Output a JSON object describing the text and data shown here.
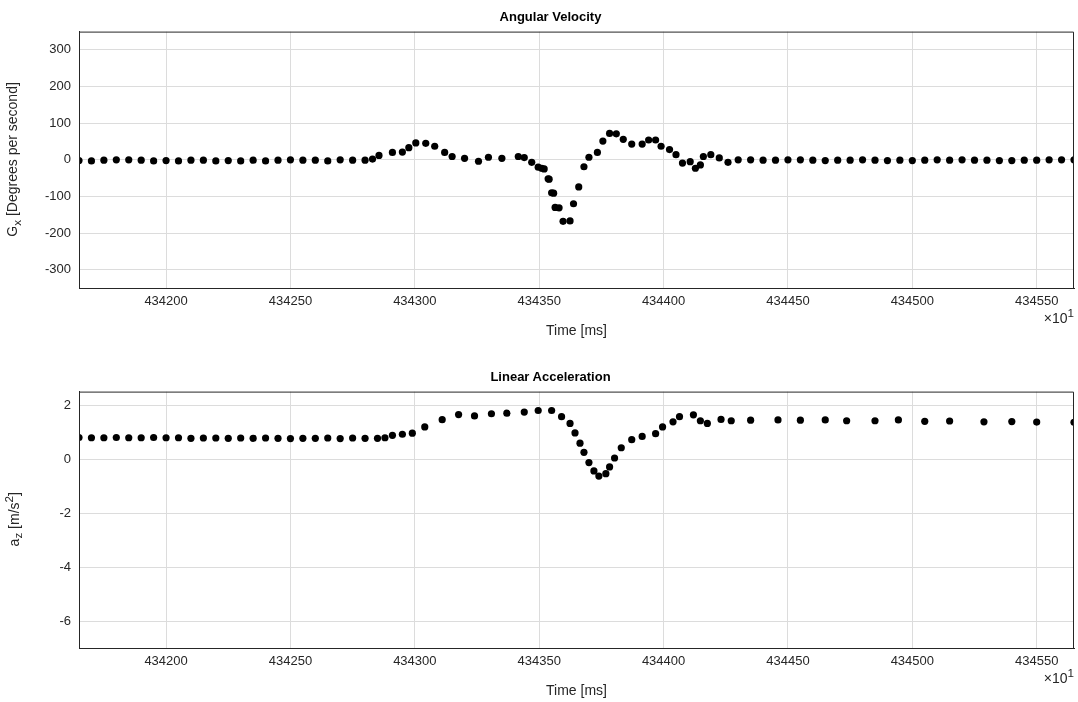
{
  "chart_data": [
    {
      "type": "scatter",
      "title": "Angular Velocity",
      "xlabel": "Time [ms]",
      "ylabel": "G$_{x}$ [Degrees per second]",
      "annotations": [
        "×10$^{1}$"
      ],
      "color": "#000000",
      "marker": "circle",
      "grid": true,
      "xlim": [
        434165,
        434565
      ],
      "xticks": [
        434200,
        434250,
        434300,
        434350,
        434400,
        434450,
        434500,
        434550
      ],
      "ylim": [
        -350,
        350
      ],
      "yticks": [
        -300,
        -200,
        -100,
        0,
        100,
        200,
        300
      ],
      "x": [
        434165,
        434170,
        434175,
        434180,
        434185,
        434190,
        434195,
        434200,
        434205,
        434210,
        434215,
        434220,
        434225,
        434230,
        434235,
        434240,
        434245,
        434250,
        434255,
        434260,
        434265,
        434270,
        434275,
        434280,
        434283,
        434285.6,
        434291,
        434295,
        434297.6,
        434300.4,
        434304.4,
        434308,
        434312,
        434315,
        434320,
        434325.6,
        434329.6,
        434335,
        434341.6,
        434344,
        434347,
        434349.6,
        434351,
        434352,
        434353.6,
        434354,
        434355,
        434355.8,
        434356.4,
        434358,
        434359.6,
        434362.4,
        434363.8,
        434365.9,
        434368,
        434370,
        434373.4,
        434375.6,
        434378.3,
        434381,
        434383.8,
        434387.2,
        434391.4,
        434394,
        434396.8,
        434399,
        434402.4,
        434405,
        434407.6,
        434410.7,
        434412.8,
        434414.8,
        434416,
        434419,
        434422.4,
        434425.9,
        434430,
        434435,
        434440,
        434445,
        434450,
        434455,
        434460,
        434465,
        434470,
        434475,
        434480,
        434485,
        434490,
        434495,
        434500,
        434505,
        434510,
        434515,
        434520,
        434525,
        434530,
        434535,
        434540,
        434545,
        434550,
        434555,
        434560,
        434565
      ],
      "values": [
        -2,
        -3,
        -1,
        0,
        0,
        -1,
        -3,
        -2,
        -3,
        -1,
        -1,
        -3,
        -2,
        -3,
        -1,
        -3,
        -1,
        0,
        -1,
        -1,
        -3,
        0,
        -1,
        -1,
        2,
        12,
        20,
        21,
        33,
        46,
        45,
        37,
        20,
        9,
        4,
        -4,
        7,
        4,
        9,
        6,
        -7,
        -20,
        -23,
        -25,
        -52,
        -53,
        -90,
        -91,
        -130,
        -131,
        -168,
        -167,
        -120,
        -74,
        -19,
        7,
        20,
        51,
        72,
        71,
        56,
        43,
        43,
        54,
        54,
        37,
        28,
        14,
        -9,
        -5,
        -23,
        -14,
        9,
        14,
        5,
        -7,
        0,
        0,
        -1,
        -1,
        0,
        0,
        -1,
        -2,
        -1,
        -1,
        0,
        -1,
        -2,
        -1,
        -2,
        -1,
        0,
        -1,
        0,
        -1,
        -1,
        -2,
        -2,
        -1,
        -1,
        0,
        0,
        0
      ]
    },
    {
      "type": "scatter",
      "title": "Linear Acceleration",
      "xlabel": "Time [ms]",
      "ylabel": "a$_{z}$ [m/s$^{2}$]",
      "annotations": [
        "×10$^{1}$"
      ],
      "color": "#000000",
      "marker": "circle",
      "grid": true,
      "xlim": [
        434165,
        434565
      ],
      "xticks": [
        434200,
        434250,
        434300,
        434350,
        434400,
        434450,
        434500,
        434550
      ],
      "ylim": [
        -7,
        2.5
      ],
      "yticks": [
        -6,
        -4,
        -2,
        0,
        2
      ],
      "x": [
        434165,
        434170,
        434175,
        434180,
        434185,
        434190,
        434195,
        434200,
        434205,
        434210,
        434215,
        434220,
        434225,
        434230,
        434235,
        434240,
        434245,
        434250,
        434255,
        434260,
        434265,
        434270,
        434275,
        434280,
        434285,
        434288,
        434291,
        434295,
        434299,
        434304,
        434311,
        434317.6,
        434324,
        434330.8,
        434337,
        434344,
        434349.6,
        434355,
        434359,
        434362.4,
        434364.4,
        434366.4,
        434368,
        434370,
        434372,
        434374,
        434376.8,
        434378.3,
        434380.3,
        434383,
        434387.2,
        434391.4,
        434396.8,
        434399.6,
        434403.8,
        434406.4,
        434412,
        434414.8,
        434417.6,
        434423.1,
        434427.2,
        434435,
        434446,
        434455,
        434465,
        434473.6,
        434485,
        434494.4,
        434505,
        434515,
        434528.8,
        434540,
        434550,
        434565
      ],
      "values": [
        0.8,
        0.79,
        0.79,
        0.8,
        0.79,
        0.79,
        0.8,
        0.79,
        0.79,
        0.77,
        0.78,
        0.78,
        0.77,
        0.78,
        0.77,
        0.78,
        0.77,
        0.76,
        0.77,
        0.77,
        0.78,
        0.76,
        0.78,
        0.77,
        0.77,
        0.79,
        0.88,
        0.92,
        0.96,
        1.19,
        1.46,
        1.65,
        1.6,
        1.68,
        1.7,
        1.74,
        1.8,
        1.8,
        1.57,
        1.32,
        0.97,
        0.59,
        0.25,
        -0.13,
        -0.44,
        -0.63,
        -0.54,
        -0.29,
        0.04,
        0.42,
        0.72,
        0.84,
        0.94,
        1.19,
        1.38,
        1.57,
        1.64,
        1.42,
        1.32,
        1.47,
        1.42,
        1.44,
        1.45,
        1.44,
        1.45,
        1.42,
        1.42,
        1.45,
        1.4,
        1.41,
        1.38,
        1.39,
        1.37,
        1.36
      ]
    }
  ]
}
